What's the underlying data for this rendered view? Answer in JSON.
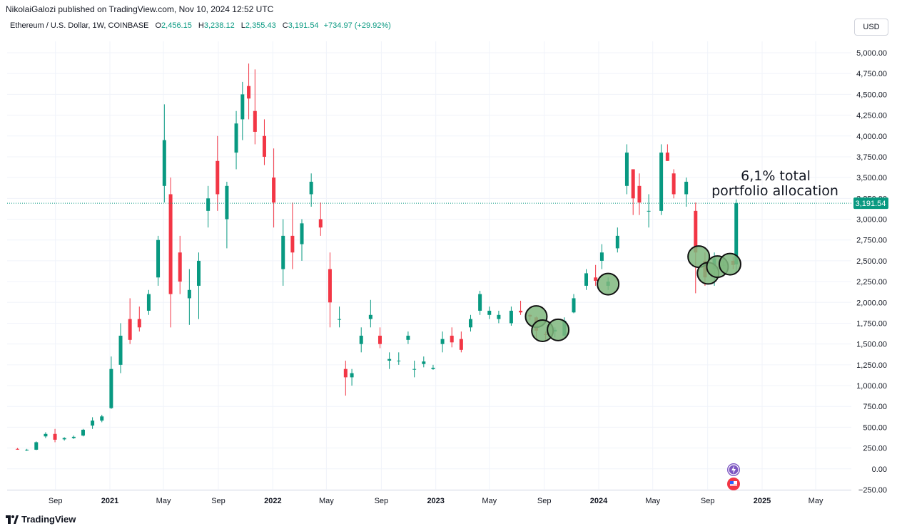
{
  "header": {
    "publisher": "NikolaiGalozi published on TradingView.com, Nov 10, 2024 12:52 UTC"
  },
  "legend": {
    "symbol": "Ethereum / U.S. Dollar, 1W, COINBASE",
    "o_label": "O",
    "o_value": "2,456.15",
    "h_label": "H",
    "h_value": "3,238.12",
    "l_label": "L",
    "l_value": "2,355.43",
    "c_label": "C",
    "c_value": "3,191.54",
    "change": "+734.97 (+29.92%)"
  },
  "currency": "USD",
  "current_price_label": "3,191.54",
  "annotation": {
    "line1": "6,1% total",
    "line2": "portfolio allocation"
  },
  "footer": {
    "brand": "TradingView"
  },
  "colors": {
    "up": "#089981",
    "down": "#f23645",
    "circle_fill": "#7fb77e",
    "price_line": "#089981"
  },
  "chart_data": {
    "type": "candlestick",
    "title": "Ethereum / U.S. Dollar, 1W, COINBASE",
    "ylim": [
      -250,
      5000
    ],
    "y_ticks": [
      "5,000.00",
      "4,750.00",
      "4,500.00",
      "4,250.00",
      "4,000.00",
      "3,750.00",
      "3,500.00",
      "3,250.00",
      "3,000.00",
      "2,750.00",
      "2,500.00",
      "2,250.00",
      "2,000.00",
      "1,750.00",
      "1,500.00",
      "1,250.00",
      "1,000.00",
      "750.00",
      "500.00",
      "250.00",
      "0.00",
      "−250.00"
    ],
    "y_tick_values": [
      5000,
      4750,
      4500,
      4250,
      4000,
      3750,
      3500,
      3250,
      3000,
      2750,
      2500,
      2250,
      2000,
      1750,
      1500,
      1250,
      1000,
      750,
      500,
      250,
      0,
      -250
    ],
    "x_ticks": [
      {
        "label": "Sep",
        "date": "2020-09-01",
        "bold": false
      },
      {
        "label": "2021",
        "date": "2021-01-01",
        "bold": true
      },
      {
        "label": "May",
        "date": "2021-05-01",
        "bold": false
      },
      {
        "label": "Sep",
        "date": "2021-09-01",
        "bold": false
      },
      {
        "label": "2022",
        "date": "2022-01-01",
        "bold": true
      },
      {
        "label": "May",
        "date": "2022-05-01",
        "bold": false
      },
      {
        "label": "Sep",
        "date": "2022-09-01",
        "bold": false
      },
      {
        "label": "2023",
        "date": "2023-01-01",
        "bold": true
      },
      {
        "label": "May",
        "date": "2023-05-01",
        "bold": false
      },
      {
        "label": "Sep",
        "date": "2023-09-01",
        "bold": false
      },
      {
        "label": "2024",
        "date": "2024-01-01",
        "bold": true
      },
      {
        "label": "May",
        "date": "2024-05-01",
        "bold": false
      },
      {
        "label": "Sep",
        "date": "2024-09-01",
        "bold": false
      },
      {
        "label": "2025",
        "date": "2025-01-01",
        "bold": true
      },
      {
        "label": "May",
        "date": "2025-05-01",
        "bold": false
      }
    ],
    "current_price": 3191.54,
    "candles": [
      [
        "2020-06-08",
        240,
        250,
        230,
        235
      ],
      [
        "2020-06-29",
        225,
        240,
        215,
        230
      ],
      [
        "2020-07-20",
        230,
        330,
        225,
        320
      ],
      [
        "2020-08-10",
        390,
        440,
        370,
        420
      ],
      [
        "2020-08-31",
        420,
        480,
        320,
        350
      ],
      [
        "2020-09-21",
        355,
        380,
        340,
        370
      ],
      [
        "2020-10-12",
        370,
        400,
        360,
        385
      ],
      [
        "2020-11-02",
        400,
        480,
        390,
        470
      ],
      [
        "2020-11-23",
        520,
        620,
        480,
        580
      ],
      [
        "2020-12-14",
        580,
        650,
        560,
        630
      ],
      [
        "2021-01-04",
        730,
        1350,
        720,
        1200
      ],
      [
        "2021-01-25",
        1250,
        1750,
        1150,
        1600
      ],
      [
        "2021-02-15",
        1800,
        2050,
        1500,
        1550
      ],
      [
        "2021-03-08",
        1800,
        1950,
        1650,
        1700
      ],
      [
        "2021-03-29",
        1900,
        2150,
        1850,
        2100
      ],
      [
        "2021-04-19",
        2300,
        2800,
        2200,
        2750
      ],
      [
        "2021-05-03",
        3400,
        4380,
        3200,
        3950
      ],
      [
        "2021-05-17",
        3300,
        3500,
        1700,
        2100
      ],
      [
        "2021-06-07",
        2600,
        2800,
        2100,
        2250
      ],
      [
        "2021-06-28",
        2050,
        2400,
        1730,
        2150
      ],
      [
        "2021-07-19",
        2200,
        2600,
        1800,
        2500
      ],
      [
        "2021-08-09",
        3100,
        3400,
        2900,
        3250
      ],
      [
        "2021-08-30",
        3700,
        4000,
        3100,
        3300
      ],
      [
        "2021-09-20",
        3000,
        3450,
        2650,
        3400
      ],
      [
        "2021-10-11",
        3800,
        4300,
        3600,
        4150
      ],
      [
        "2021-10-25",
        4200,
        4650,
        3950,
        4500
      ],
      [
        "2021-11-08",
        4600,
        4870,
        4200,
        4450
      ],
      [
        "2021-11-22",
        4300,
        4800,
        3900,
        4050
      ],
      [
        "2021-12-13",
        4000,
        4200,
        3650,
        3750
      ],
      [
        "2022-01-03",
        3500,
        3850,
        2900,
        3200
      ],
      [
        "2022-01-24",
        2400,
        3000,
        2200,
        2800
      ],
      [
        "2022-02-14",
        2800,
        3200,
        2400,
        2600
      ],
      [
        "2022-03-07",
        2700,
        3000,
        2500,
        2950
      ],
      [
        "2022-03-28",
        3300,
        3550,
        3150,
        3450
      ],
      [
        "2022-04-18",
        3000,
        3200,
        2800,
        2900
      ],
      [
        "2022-05-09",
        2400,
        2600,
        1700,
        2000
      ],
      [
        "2022-05-30",
        1800,
        1950,
        1700,
        1800
      ],
      [
        "2022-06-13",
        1200,
        1300,
        880,
        1100
      ],
      [
        "2022-06-27",
        1100,
        1200,
        1000,
        1150
      ],
      [
        "2022-07-18",
        1500,
        1700,
        1400,
        1600
      ],
      [
        "2022-08-08",
        1800,
        2030,
        1700,
        1850
      ],
      [
        "2022-08-29",
        1600,
        1700,
        1450,
        1500
      ],
      [
        "2022-09-19",
        1300,
        1400,
        1200,
        1320
      ],
      [
        "2022-10-10",
        1300,
        1400,
        1250,
        1300
      ],
      [
        "2022-10-31",
        1550,
        1650,
        1500,
        1600
      ],
      [
        "2022-11-14",
        1200,
        1300,
        1100,
        1200
      ],
      [
        "2022-12-05",
        1260,
        1350,
        1220,
        1290
      ],
      [
        "2022-12-26",
        1200,
        1250,
        1190,
        1215
      ],
      [
        "2023-01-16",
        1500,
        1650,
        1400,
        1560
      ],
      [
        "2023-02-06",
        1600,
        1700,
        1460,
        1520
      ],
      [
        "2023-02-27",
        1560,
        1650,
        1400,
        1430
      ],
      [
        "2023-03-20",
        1700,
        1850,
        1650,
        1800
      ],
      [
        "2023-04-10",
        1900,
        2140,
        1850,
        2100
      ],
      [
        "2023-05-01",
        1850,
        1950,
        1800,
        1900
      ],
      [
        "2023-05-22",
        1800,
        1900,
        1750,
        1850
      ],
      [
        "2023-06-19",
        1750,
        1950,
        1720,
        1900
      ],
      [
        "2023-07-10",
        1900,
        2020,
        1850,
        1880
      ],
      [
        "2023-07-31",
        1850,
        1860,
        1790,
        1830
      ],
      [
        "2023-08-14",
        1820,
        1830,
        1560,
        1660
      ],
      [
        "2023-09-04",
        1620,
        1650,
        1550,
        1610
      ],
      [
        "2023-09-25",
        1650,
        1700,
        1580,
        1670
      ],
      [
        "2023-10-16",
        1600,
        1820,
        1590,
        1780
      ],
      [
        "2023-11-06",
        1880,
        2100,
        1870,
        2050
      ],
      [
        "2023-12-04",
        2200,
        2400,
        2150,
        2350
      ],
      [
        "2023-12-25",
        2300,
        2450,
        2200,
        2260
      ],
      [
        "2024-01-08",
        2500,
        2700,
        2400,
        2600
      ],
      [
        "2024-01-22",
        2200,
        2300,
        2150,
        2250
      ],
      [
        "2024-02-12",
        2650,
        2900,
        2600,
        2800
      ],
      [
        "2024-03-04",
        3400,
        3900,
        3300,
        3800
      ],
      [
        "2024-03-18",
        3600,
        3600,
        3050,
        3250
      ],
      [
        "2024-04-01",
        3400,
        3550,
        3050,
        3200
      ],
      [
        "2024-04-22",
        3100,
        3300,
        2900,
        3100
      ],
      [
        "2024-05-20",
        3100,
        3900,
        3050,
        3800
      ],
      [
        "2024-06-03",
        3800,
        3900,
        3700,
        3700
      ],
      [
        "2024-06-17",
        3550,
        3600,
        3250,
        3300
      ],
      [
        "2024-07-15",
        3300,
        3500,
        3150,
        3450
      ],
      [
        "2024-08-05",
        3100,
        3200,
        2110,
        2600
      ],
      [
        "2024-08-26",
        2500,
        2600,
        2200,
        2300
      ],
      [
        "2024-09-16",
        2400,
        2600,
        2200,
        2530
      ],
      [
        "2024-10-07",
        2450,
        2500,
        2400,
        2450
      ],
      [
        "2024-10-28",
        2500,
        2550,
        2400,
        2450
      ],
      [
        "2024-11-04",
        2456.15,
        3238.12,
        2355.43,
        3191.54
      ]
    ],
    "highlight_circles": [
      {
        "date": "2023-08-14",
        "price": 1830
      },
      {
        "date": "2023-08-28",
        "price": 1660
      },
      {
        "date": "2023-10-02",
        "price": 1670
      },
      {
        "date": "2024-01-22",
        "price": 2220
      },
      {
        "date": "2024-08-12",
        "price": 2550
      },
      {
        "date": "2024-09-02",
        "price": 2350
      },
      {
        "date": "2024-09-23",
        "price": 2430
      },
      {
        "date": "2024-10-21",
        "price": 2460
      }
    ]
  }
}
